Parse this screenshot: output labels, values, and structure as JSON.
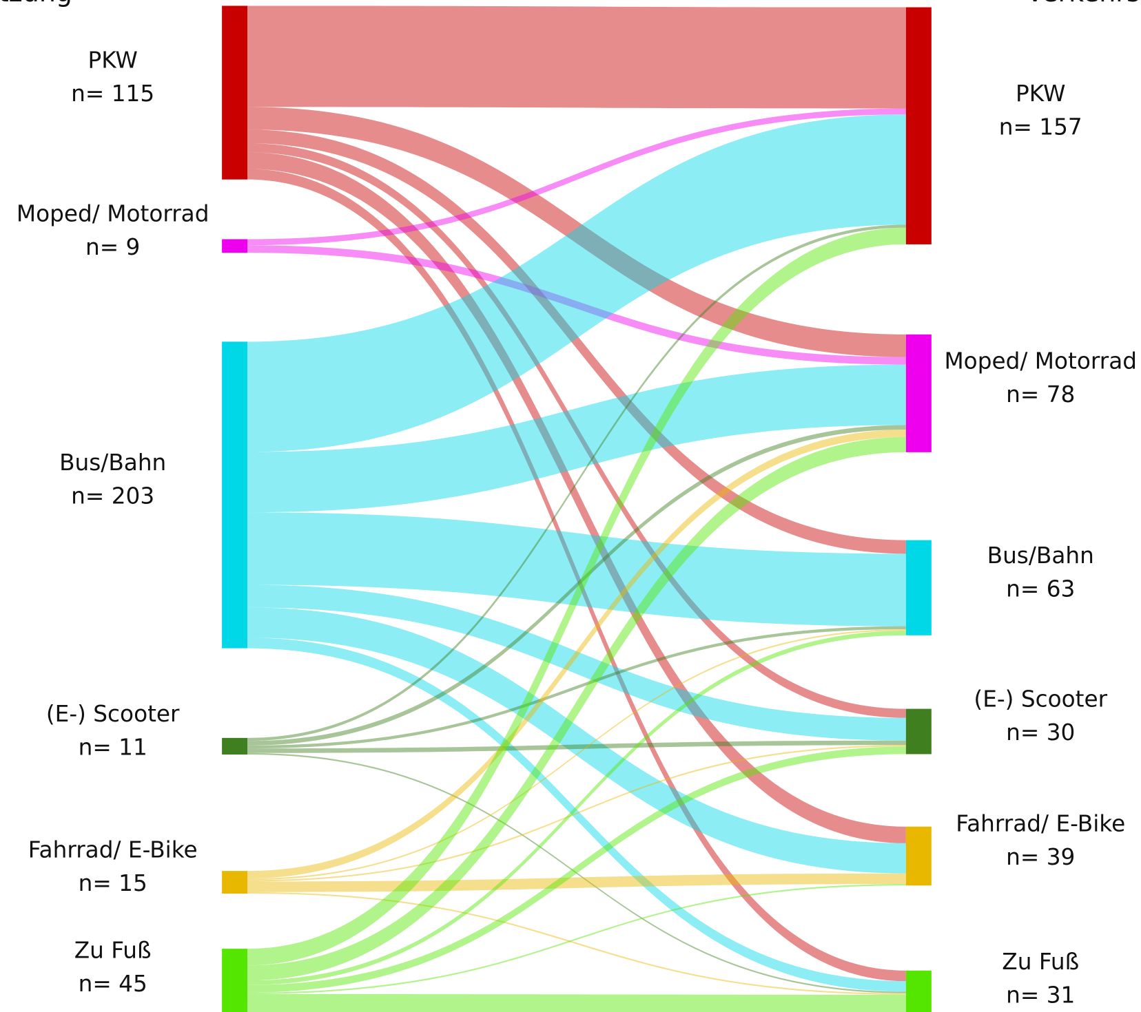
{
  "chart_data": {
    "type": "sankey",
    "left_title": "tzung",
    "right_title": "Verkehrs",
    "left_nodes": [
      {
        "label": "PKW",
        "n": 115,
        "n_label": "n= 115",
        "color": "#c80000"
      },
      {
        "label": "Moped/ Motorrad",
        "n": 9,
        "n_label": "n= 9",
        "color": "#ee00ee"
      },
      {
        "label": "Bus/Bahn",
        "n": 203,
        "n_label": "n= 203",
        "color": "#00d8e8"
      },
      {
        "label": "(E-) Scooter",
        "n": 11,
        "n_label": "n= 11",
        "color": "#3f7f1f"
      },
      {
        "label": "Fahrrad/ E-Bike",
        "n": 15,
        "n_label": "n= 15",
        "color": "#e8b800"
      },
      {
        "label": "Zu Fuß",
        "n": 45,
        "n_label": "n= 45",
        "color": "#55e600"
      }
    ],
    "right_nodes": [
      {
        "label": "PKW",
        "n": 157,
        "n_label": "n= 157",
        "color": "#c80000"
      },
      {
        "label": "Moped/ Motorrad",
        "n": 78,
        "n_label": "n= 78",
        "color": "#ee00ee"
      },
      {
        "label": "Bus/Bahn",
        "n": 63,
        "n_label": "n= 63",
        "color": "#00d8e8"
      },
      {
        "label": "(E-) Scooter",
        "n": 30,
        "n_label": "n= 30",
        "color": "#3f7f1f"
      },
      {
        "label": "Fahrrad/ E-Bike",
        "n": 39,
        "n_label": "n= 39",
        "color": "#e8b800"
      },
      {
        "label": "Zu Fuß",
        "n": 31,
        "n_label": "n= 31",
        "color": "#55e600"
      }
    ],
    "flows": [
      [
        67,
        15,
        9,
        6,
        11,
        7
      ],
      [
        4,
        5,
        null,
        null,
        null,
        null
      ],
      [
        73,
        40,
        48,
        15,
        20,
        7
      ],
      [
        2,
        3,
        2,
        3,
        null,
        1
      ],
      [
        null,
        5,
        1,
        1,
        7,
        1
      ],
      [
        11,
        10,
        3,
        5,
        1,
        15
      ]
    ]
  }
}
